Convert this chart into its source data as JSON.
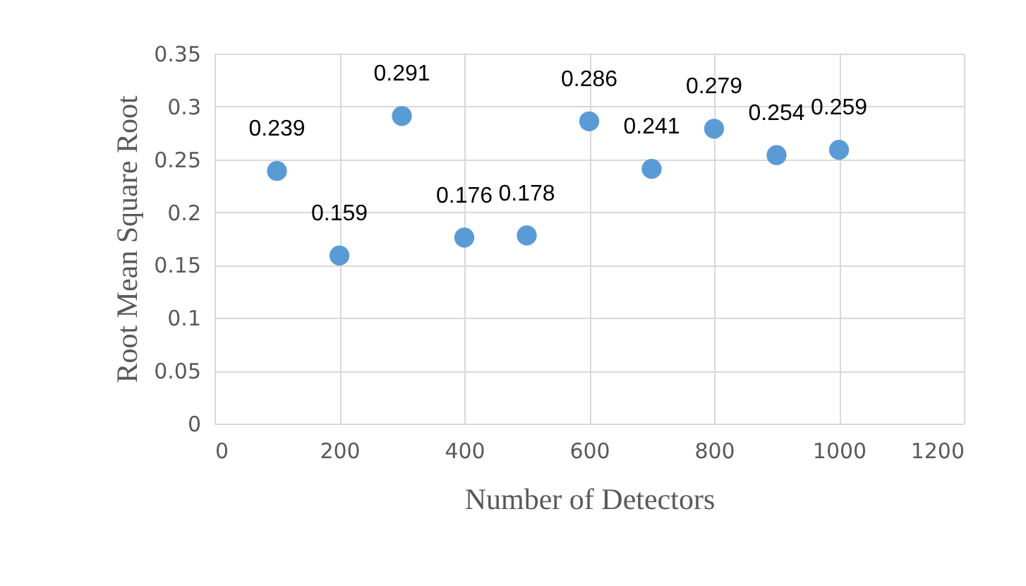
{
  "chart_data": {
    "type": "scatter",
    "xlabel": "Number of Detectors",
    "ylabel": "Root Mean Square Root",
    "x": [
      100,
      200,
      300,
      400,
      500,
      600,
      700,
      800,
      900,
      1000
    ],
    "series": [
      {
        "color": "#5b9bd5",
        "values": [
          0.239,
          0.159,
          0.291,
          0.176,
          0.178,
          0.286,
          0.241,
          0.279,
          0.254,
          0.259
        ]
      }
    ],
    "xlim": [
      0,
      1200
    ],
    "xticks": [
      0,
      200,
      400,
      600,
      800,
      1000,
      1200
    ],
    "ylim": [
      0,
      0.35
    ],
    "yticks": [
      0,
      0.05,
      0.1,
      0.15,
      0.2,
      0.25,
      0.3,
      0.35
    ],
    "grid": true,
    "marker": "circle",
    "data_labels": true
  }
}
